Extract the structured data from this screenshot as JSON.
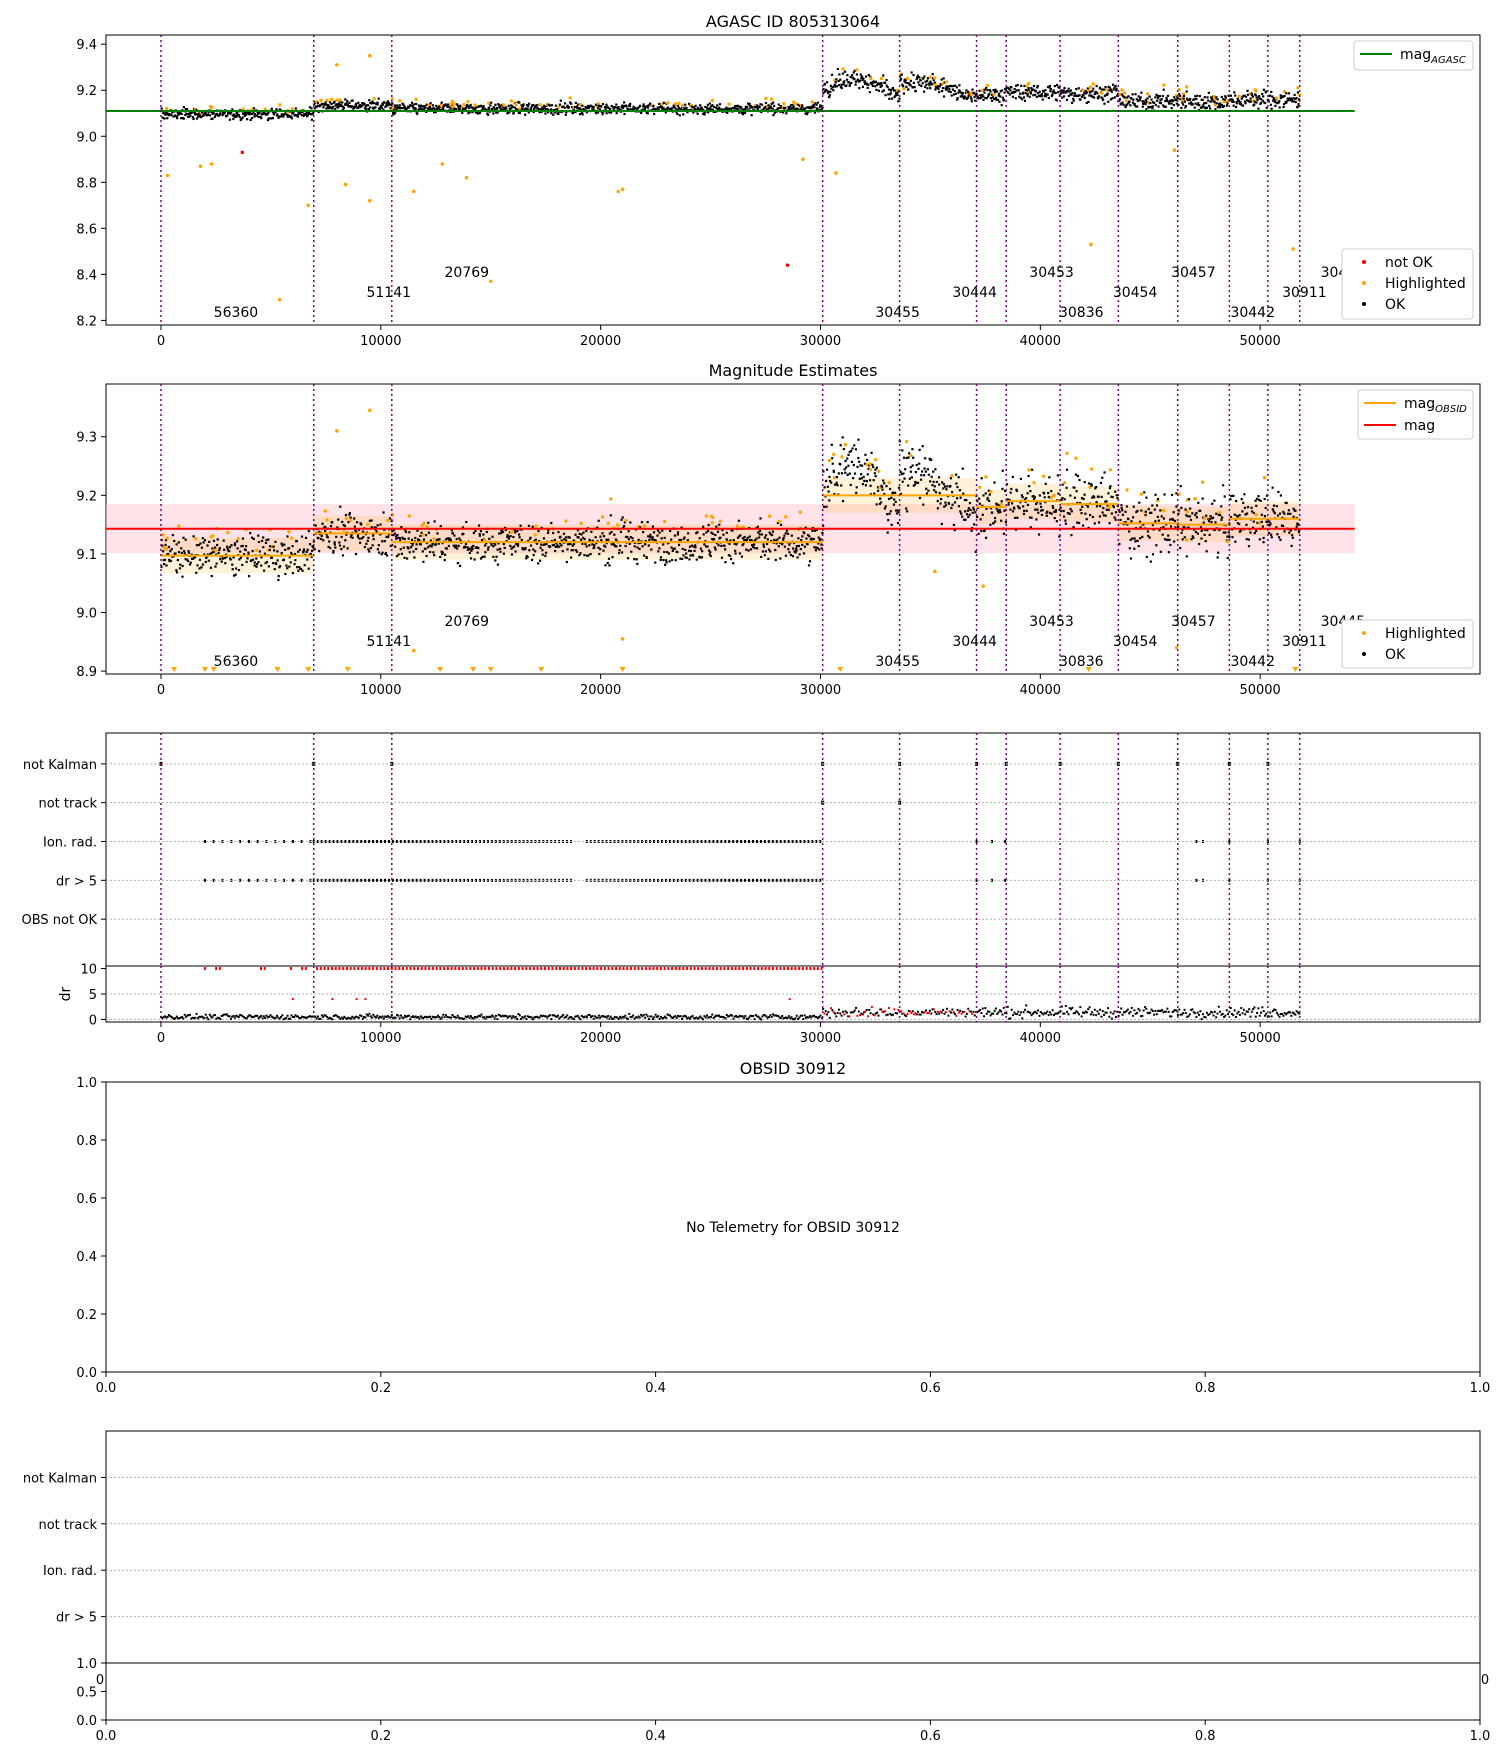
{
  "chart_data": [
    {
      "id": "p1",
      "type": "scatter",
      "title": "AGASC ID 805313064",
      "xlim": [
        -2500,
        60000
      ],
      "ylim": [
        8.18,
        9.44
      ],
      "xticks": [
        0,
        10000,
        20000,
        30000,
        40000,
        50000
      ],
      "yticks": [
        8.2,
        8.4,
        8.6,
        8.8,
        9.0,
        9.2,
        9.4
      ],
      "xticklabels": [
        "0",
        "10000",
        "20000",
        "30000",
        "40000",
        "50000"
      ],
      "yticklabels": [
        "8.2",
        "8.4",
        "8.6",
        "8.8",
        "9.0",
        "9.2",
        "9.4"
      ],
      "hline": {
        "y": 9.11,
        "x": [
          -2500,
          54300
        ],
        "color": "#008000"
      },
      "legend_lines": [
        {
          "name": "mag",
          "sub": "AGASC",
          "color": "#008000"
        }
      ],
      "legend_points": [
        {
          "name": "not OK",
          "color": "#ff0000"
        },
        {
          "name": "Highlighted",
          "color": "#ffa500"
        },
        {
          "name": "OK",
          "color": "#000000"
        }
      ],
      "outliers": [
        {
          "x": 3700,
          "y": 8.93,
          "color": "#ff0000"
        },
        {
          "x": 28500,
          "y": 8.44,
          "color": "#ff0000"
        },
        {
          "x": 15000,
          "y": 8.37,
          "color": "#ffa500"
        },
        {
          "x": 5400,
          "y": 8.29,
          "color": "#ffa500"
        },
        {
          "x": 6700,
          "y": 8.7,
          "color": "#ffa500"
        },
        {
          "x": 9500,
          "y": 8.72,
          "color": "#ffa500"
        },
        {
          "x": 11500,
          "y": 8.76,
          "color": "#ffa500"
        },
        {
          "x": 21000,
          "y": 8.77,
          "color": "#ffa500"
        },
        {
          "x": 20800,
          "y": 8.76,
          "color": "#ffa500"
        },
        {
          "x": 42300,
          "y": 8.53,
          "color": "#ffa500"
        },
        {
          "x": 51500,
          "y": 8.51,
          "color": "#ffa500"
        },
        {
          "x": 9500,
          "y": 9.35,
          "color": "#ffa500"
        },
        {
          "x": 8000,
          "y": 9.31,
          "color": "#ffa500"
        },
        {
          "x": 30700,
          "y": 8.84,
          "color": "#ffa500"
        },
        {
          "x": 29200,
          "y": 8.9,
          "color": "#ffa500"
        },
        {
          "x": 1800,
          "y": 8.87,
          "color": "#ffa500"
        },
        {
          "x": 2300,
          "y": 8.88,
          "color": "#ffa500"
        },
        {
          "x": 8400,
          "y": 8.79,
          "color": "#ffa500"
        },
        {
          "x": 12800,
          "y": 8.88,
          "color": "#ffa500"
        },
        {
          "x": 13900,
          "y": 8.82,
          "color": "#ffa500"
        },
        {
          "x": 300,
          "y": 8.83,
          "color": "#ffa500"
        },
        {
          "x": 46100,
          "y": 8.94,
          "color": "#ffa500"
        }
      ]
    },
    {
      "id": "p2",
      "type": "scatter",
      "title": "Magnitude Estimates",
      "xlim": [
        -2500,
        60000
      ],
      "ylim": [
        8.895,
        9.39
      ],
      "xticks": [
        0,
        10000,
        20000,
        30000,
        40000,
        50000
      ],
      "yticks": [
        8.9,
        9.0,
        9.1,
        9.2,
        9.3
      ],
      "xticklabels": [
        "0",
        "10000",
        "20000",
        "30000",
        "40000",
        "50000"
      ],
      "yticklabels": [
        "8.9",
        "9.0",
        "9.1",
        "9.2",
        "9.3"
      ],
      "hline": {
        "y": 9.143,
        "x": [
          -2500,
          54300
        ],
        "color": "#ff0000"
      },
      "hband": {
        "y": [
          9.101,
          9.185
        ],
        "color": "#ffc0cb"
      },
      "legend_lines": [
        {
          "name": "mag",
          "sub": "OBSID",
          "color": "#ffa500"
        },
        {
          "name": "mag",
          "sub": "",
          "color": "#ff0000"
        }
      ],
      "legend_points": [
        {
          "name": "Highlighted",
          "color": "#ffa500"
        },
        {
          "name": "OK",
          "color": "#000000"
        }
      ],
      "outliers": [
        {
          "x": 9500,
          "y": 9.345,
          "color": "#ffa500"
        },
        {
          "x": 8000,
          "y": 9.31,
          "color": "#ffa500"
        },
        {
          "x": 21000,
          "y": 8.955,
          "color": "#ffa500"
        },
        {
          "x": 11500,
          "y": 8.935,
          "color": "#ffa500"
        },
        {
          "x": 35200,
          "y": 9.07,
          "color": "#ffa500"
        },
        {
          "x": 37400,
          "y": 9.045,
          "color": "#ffa500"
        },
        {
          "x": 46200,
          "y": 8.94,
          "color": "#ffa500"
        },
        {
          "x": 50200,
          "y": 9.23,
          "color": "#ffa500"
        }
      ]
    },
    {
      "id": "p3",
      "type": "scatter",
      "title": "",
      "categories": [
        "not Kalman",
        "not track",
        "Ion. rad.",
        "dr > 5",
        "OBS not OK"
      ],
      "xlim": [
        -2500,
        60000
      ]
    },
    {
      "id": "p3b",
      "type": "scatter",
      "ylabel": "dr",
      "xlim": [
        -2500,
        60000
      ],
      "ylim": [
        -0.5,
        10.5
      ],
      "yticks": [
        0,
        5,
        10
      ],
      "yticklabels": [
        "0",
        "5",
        "10"
      ],
      "xticks": [
        0,
        10000,
        20000,
        30000,
        40000,
        50000
      ],
      "xticklabels": [
        "0",
        "10000",
        "20000",
        "30000",
        "40000",
        "50000"
      ]
    },
    {
      "id": "p4",
      "type": "scatter",
      "title": "OBSID 30912",
      "annotation": "No Telemetry for OBSID 30912",
      "xlim": [
        0,
        1
      ],
      "ylim": [
        0,
        1
      ],
      "xticks": [
        0,
        0.2,
        0.4,
        0.6,
        0.8,
        1.0
      ],
      "yticks": [
        0,
        0.2,
        0.4,
        0.6,
        0.8,
        1.0
      ],
      "xticklabels": [
        "0.0",
        "0.2",
        "0.4",
        "0.6",
        "0.8",
        "1.0"
      ],
      "yticklabels": [
        "0.0",
        "0.2",
        "0.4",
        "0.6",
        "0.8",
        "1.0"
      ]
    },
    {
      "id": "p5",
      "type": "scatter",
      "categories": [
        "not Kalman",
        "not track",
        "Ion. rad.",
        "dr > 5"
      ],
      "edge_tick_left": "0",
      "edge_tick_right": "0"
    },
    {
      "id": "p5b",
      "type": "scatter",
      "xlim": [
        0,
        1
      ],
      "ylim": [
        0,
        1
      ],
      "yticks": [
        0,
        0.5,
        1.0
      ],
      "yticklabels": [
        "0.0",
        "0.5",
        "1.0"
      ],
      "xticks": [
        0,
        0.2,
        0.4,
        0.6,
        0.8,
        1.0
      ],
      "xticklabels": [
        "0.0",
        "0.2",
        "0.4",
        "0.6",
        "0.8",
        "1.0"
      ]
    }
  ],
  "obsids": [
    {
      "id": "56360",
      "start": 0,
      "end": 6950,
      "level": 3,
      "mag": 9.097
    },
    {
      "id": "51141",
      "start": 6950,
      "end": 10500,
      "level": 2,
      "mag": 9.135
    },
    {
      "id": "20769",
      "start": 10500,
      "end": 30100,
      "level": 1,
      "mag": 9.12
    },
    {
      "id": "30455",
      "start": 30100,
      "end": 33600,
      "level": 3,
      "mag": 9.2
    },
    {
      "id": "30444",
      "start": 33600,
      "end": 37100,
      "level": 2,
      "mag": 9.2
    },
    {
      "id": "30453",
      "start": 37100,
      "end": 38450,
      "level": 1,
      "mag": 9.18
    },
    {
      "id": "30836",
      "start": 38450,
      "end": 40900,
      "level": 3,
      "mag": 9.19
    },
    {
      "id": "30454",
      "start": 40900,
      "end": 43550,
      "level": 2,
      "mag": 9.185
    },
    {
      "id": "30457",
      "start": 43550,
      "end": 46250,
      "level": 1,
      "mag": 9.152
    },
    {
      "id": "30442",
      "start": 46250,
      "end": 48600,
      "level": 3,
      "mag": 9.15
    },
    {
      "id": "30911",
      "start": 48600,
      "end": 50350,
      "level": 2,
      "mag": 9.16
    },
    {
      "id": "30445",
      "start": 50350,
      "end": 51800,
      "level": 1,
      "mag": 9.16
    }
  ],
  "obs_dividers": [
    0,
    6950,
    10500,
    30100,
    33600,
    37100,
    38450,
    40900,
    43550,
    46250,
    48600,
    50350,
    51800
  ],
  "colors": {
    "ok": "#000000",
    "highlighted": "#ffa500",
    "not_ok": "#ff0000",
    "divider": "#800080",
    "grid": "#b0b0b0"
  }
}
